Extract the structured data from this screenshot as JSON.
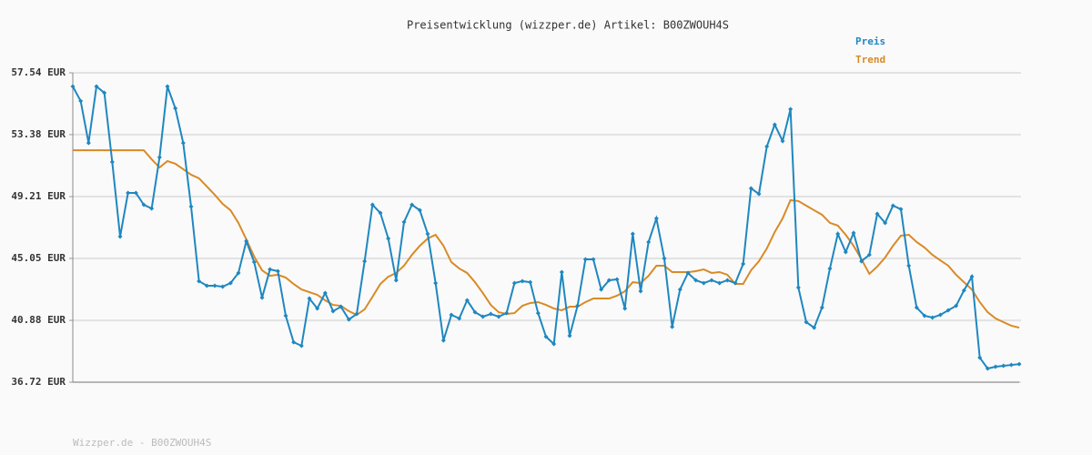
{
  "chart_data": {
    "type": "line",
    "title": "Preisentwicklung (wizzper.de) Artikel: B00ZWOUH4S",
    "footer": "Wizzper.de - B00ZWOUH4S",
    "ylim": [
      36.72,
      57.54
    ],
    "yticks": [
      {
        "value": 36.72,
        "label": "36.72 EUR"
      },
      {
        "value": 40.88,
        "label": "40.88 EUR"
      },
      {
        "value": 45.05,
        "label": "45.05 EUR"
      },
      {
        "value": 49.21,
        "label": "49.21 EUR"
      },
      {
        "value": 53.38,
        "label": "53.38 EUR"
      },
      {
        "value": 57.54,
        "label": "57.54 EUR"
      }
    ],
    "grid": true,
    "legend": "top-right",
    "series": [
      {
        "name": "Preis",
        "color": "#1f87c0",
        "markers": true,
        "values": [
          56.62,
          55.64,
          52.82,
          56.62,
          56.19,
          51.54,
          46.52,
          49.46,
          49.46,
          48.66,
          48.41,
          51.85,
          56.62,
          55.15,
          52.82,
          48.54,
          43.52,
          43.21,
          43.21,
          43.15,
          43.39,
          44.07,
          46.21,
          44.8,
          42.41,
          44.31,
          44.19,
          41.19,
          39.41,
          39.17,
          42.35,
          41.68,
          42.72,
          41.5,
          41.8,
          40.94,
          41.31,
          44.86,
          48.66,
          48.11,
          46.39,
          43.58,
          47.5,
          48.66,
          48.29,
          46.7,
          43.39,
          39.53,
          41.25,
          41.01,
          42.23,
          41.43,
          41.13,
          41.31,
          41.13,
          41.37,
          43.39,
          43.52,
          43.45,
          41.37,
          39.78,
          39.29,
          44.13,
          39.84,
          41.86,
          44.99,
          44.99,
          42.96,
          43.58,
          43.64,
          41.68,
          46.7,
          42.84,
          46.15,
          47.74,
          45.05,
          40.45,
          42.96,
          44.07,
          43.58,
          43.39,
          43.58,
          43.39,
          43.58,
          43.39,
          44.68,
          49.76,
          49.39,
          52.58,
          54.05,
          52.95,
          55.09,
          43.09,
          40.76,
          40.39,
          41.74,
          44.37,
          46.7,
          45.48,
          46.76,
          44.86,
          45.29,
          48.05,
          47.44,
          48.6,
          48.36,
          44.56,
          41.74,
          41.19,
          41.07,
          41.25,
          41.56,
          41.86,
          42.9,
          43.82,
          38.37,
          37.64,
          37.76,
          37.82,
          37.88,
          37.94
        ]
      },
      {
        "name": "Trend",
        "color": "#d98a26",
        "markers": false,
        "values": [
          52.33,
          52.33,
          52.33,
          52.33,
          52.33,
          52.33,
          52.33,
          52.33,
          52.33,
          52.33,
          51.72,
          51.17,
          51.6,
          51.42,
          51.05,
          50.68,
          50.44,
          49.89,
          49.33,
          48.72,
          48.29,
          47.44,
          46.33,
          45.17,
          44.25,
          43.88,
          43.95,
          43.76,
          43.33,
          42.96,
          42.78,
          42.6,
          42.23,
          41.92,
          41.86,
          41.5,
          41.25,
          41.62,
          42.47,
          43.33,
          43.82,
          44.07,
          44.56,
          45.29,
          45.9,
          46.39,
          46.64,
          45.9,
          44.8,
          44.37,
          44.07,
          43.45,
          42.72,
          41.92,
          41.43,
          41.31,
          41.37,
          41.86,
          42.05,
          42.11,
          41.92,
          41.68,
          41.56,
          41.8,
          41.8,
          42.11,
          42.35,
          42.35,
          42.35,
          42.54,
          42.84,
          43.45,
          43.39,
          43.88,
          44.56,
          44.56,
          44.13,
          44.13,
          44.13,
          44.19,
          44.31,
          44.07,
          44.13,
          43.95,
          43.33,
          43.33,
          44.25,
          44.86,
          45.72,
          46.82,
          47.74,
          48.97,
          48.91,
          48.6,
          48.29,
          47.99,
          47.44,
          47.26,
          46.64,
          45.9,
          44.99,
          44.01,
          44.5,
          45.11,
          45.9,
          46.58,
          46.64,
          46.15,
          45.78,
          45.29,
          44.92,
          44.56,
          43.95,
          43.45,
          42.96,
          42.11,
          41.43,
          41.01,
          40.76,
          40.52,
          40.39
        ]
      }
    ]
  }
}
